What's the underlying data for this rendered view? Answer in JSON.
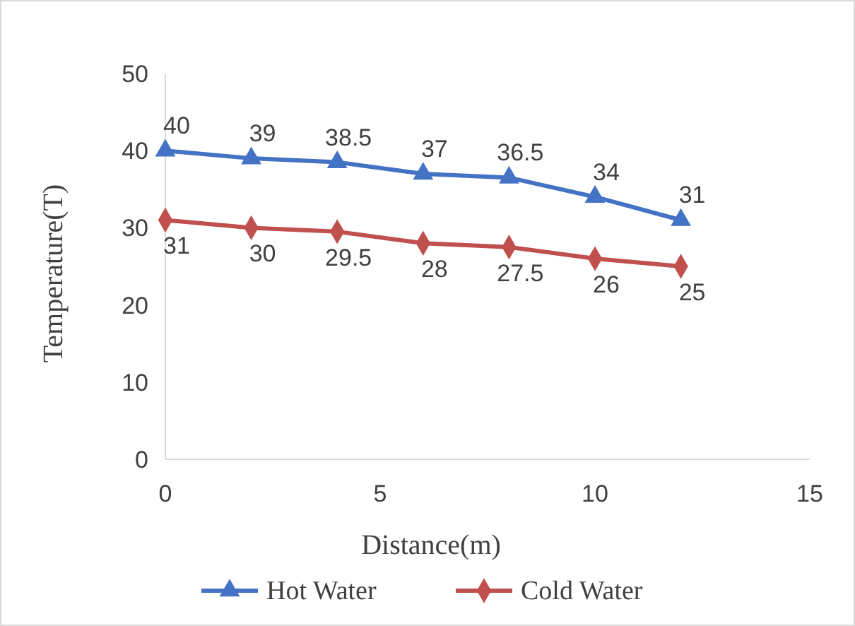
{
  "chart_data": {
    "type": "line",
    "xlabel": "Distance(m)",
    "ylabel": "Temperature(T)",
    "x": [
      0,
      2,
      4,
      6,
      8,
      10,
      12
    ],
    "xlim": [
      0,
      15
    ],
    "xticks": [
      0,
      5,
      10,
      15
    ],
    "ylim": [
      0,
      50
    ],
    "yticks": [
      0,
      10,
      20,
      30,
      40,
      50
    ],
    "grid": false,
    "legend": "bottom",
    "data_labels": true,
    "series": [
      {
        "name": "Hot Water",
        "color": "#4472c4",
        "marker": "triangle",
        "values": [
          40,
          39,
          38.5,
          37,
          36.5,
          34,
          31
        ]
      },
      {
        "name": "Cold Water",
        "color": "#c0504d",
        "marker": "diamond",
        "values": [
          31,
          30,
          29.5,
          28,
          27.5,
          26,
          25
        ]
      }
    ]
  }
}
